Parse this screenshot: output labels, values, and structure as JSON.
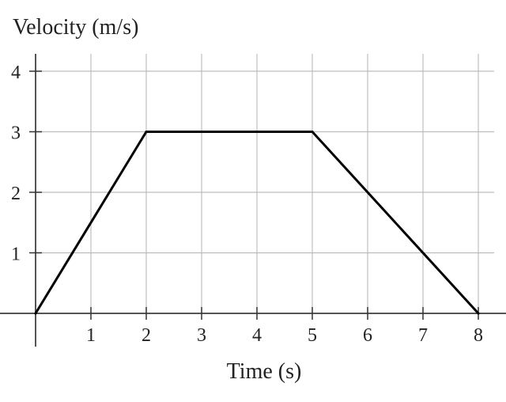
{
  "chart_data": {
    "type": "line",
    "title": "",
    "xlabel": "Time (s)",
    "ylabel": "Velocity (m/s)",
    "xlim": [
      0,
      8
    ],
    "ylim": [
      0,
      4
    ],
    "x_ticks": [
      1,
      2,
      3,
      4,
      5,
      6,
      7,
      8
    ],
    "y_ticks": [
      1,
      2,
      3,
      4
    ],
    "grid": true,
    "series": [
      {
        "x": [
          0,
          2,
          5,
          8
        ],
        "y": [
          0,
          3,
          3,
          0
        ]
      }
    ],
    "colors": {
      "line": "#000000",
      "grid": "#bdbdbd",
      "axis": "#555555"
    }
  }
}
